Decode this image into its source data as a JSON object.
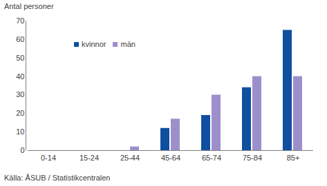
{
  "chart_data": {
    "type": "bar",
    "y_label": "Antal personer",
    "caption": "Källa: ÅSUB / Statistikcentralen",
    "categories": [
      "0-14",
      "15-24",
      "25-44",
      "45-64",
      "65-74",
      "75-84",
      "85+"
    ],
    "series": [
      {
        "name": "kvinnor",
        "color": "#0f4fa0",
        "values": [
          0,
          0,
          0,
          12,
          19,
          34,
          65
        ]
      },
      {
        "name": "män",
        "color": "#9d8fcc",
        "values": [
          0,
          0,
          2,
          17,
          30,
          40,
          40
        ]
      }
    ],
    "ylim": [
      0,
      70
    ],
    "yticks": [
      0,
      10,
      20,
      30,
      40,
      50,
      60,
      70
    ],
    "grid": false,
    "legend": "upper left"
  }
}
